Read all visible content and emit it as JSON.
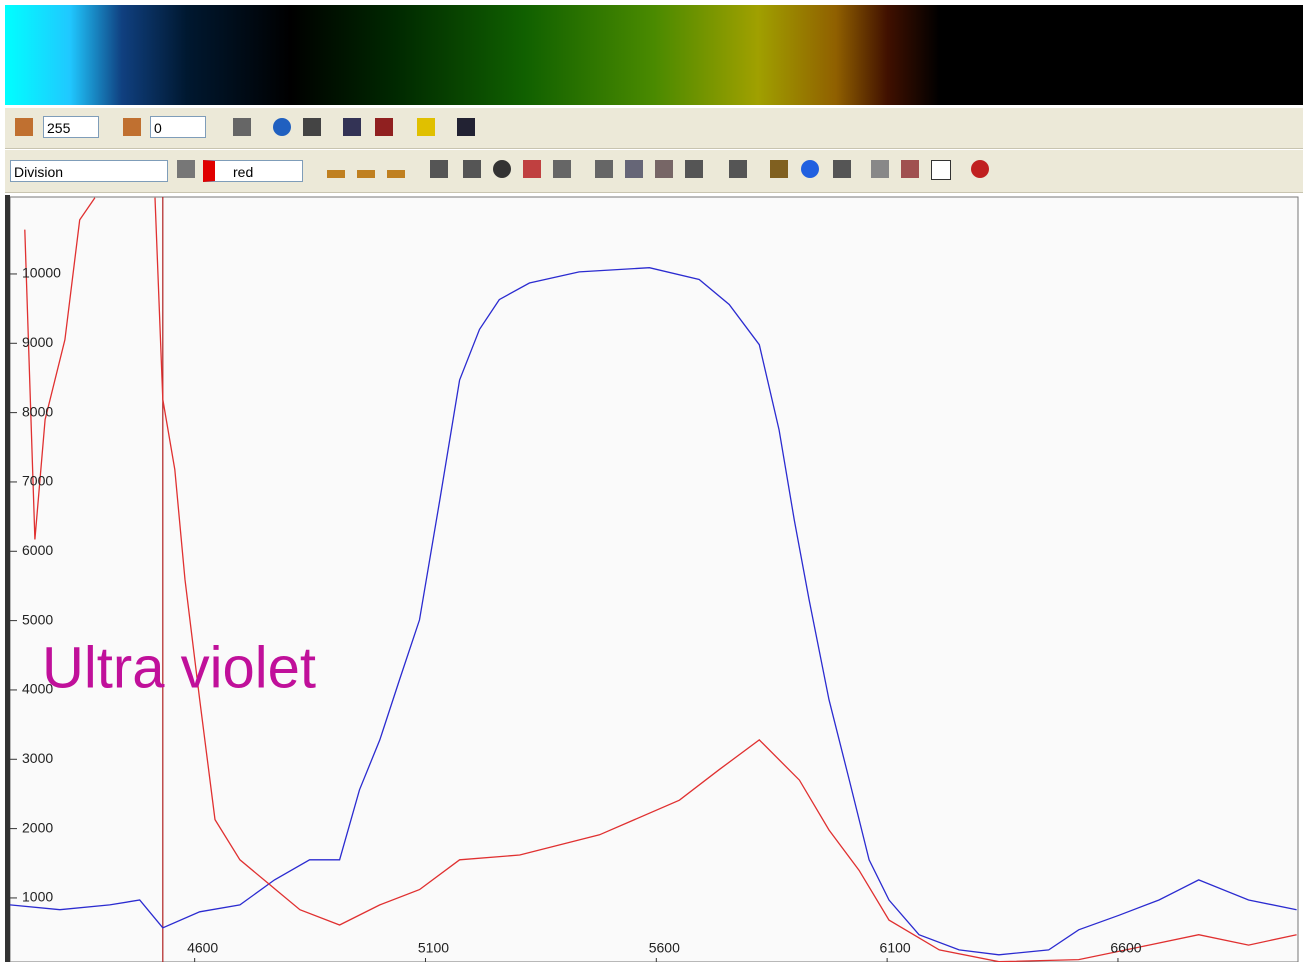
{
  "toolbar": {
    "threshold": "255",
    "offset": "0",
    "mode": "Division",
    "channel": "red"
  },
  "chart_data": {
    "type": "line",
    "annotation": "Ultra violet",
    "xlim": [
      4200,
      6990
    ],
    "ylim": [
      76,
      11110
    ],
    "xticks": [
      4600,
      5100,
      5600,
      6100,
      6600
    ],
    "yticks": [
      1000,
      2000,
      3000,
      4000,
      5000,
      6000,
      7000,
      8000,
      9000,
      10000
    ],
    "cursor": {
      "x": 4531,
      "color": "#b02020"
    },
    "series": [
      {
        "color": "#2b2bd0",
        "x": [
          4200,
          4308,
          4416,
          4481,
          4531,
          4611,
          4698,
          4773,
          4849,
          4914,
          4957,
          5001,
          5044,
          5087,
          5131,
          5174,
          5217,
          5260,
          5325,
          5433,
          5585,
          5693,
          5758,
          5823,
          5866,
          5899,
          5931,
          5974,
          6018,
          6061,
          6104,
          6169,
          6256,
          6342,
          6450,
          6515,
          6602,
          6689,
          6775,
          6883,
          6987
        ],
        "values": [
          900,
          830,
          900,
          970,
          570,
          800,
          900,
          1260,
          1550,
          1550,
          2560,
          3280,
          4150,
          5010,
          6740,
          8470,
          9200,
          9630,
          9870,
          10030,
          10090,
          9920,
          9560,
          8980,
          7750,
          6450,
          5300,
          3860,
          2700,
          1550,
          970,
          470,
          250,
          180,
          250,
          540,
          750,
          970,
          1260,
          970,
          830
        ]
      },
      {
        "color": "#e03030",
        "x": [
          4232,
          4254,
          4276,
          4319,
          4351,
          4384,
          4450,
          4514,
          4531,
          4557,
          4579,
          4611,
          4644,
          4698,
          4763,
          4828,
          4914,
          5001,
          5087,
          5174,
          5304,
          5477,
          5650,
          5736,
          5823,
          5910,
          5974,
          6039,
          6104,
          6213,
          6342,
          6515,
          6667,
          6775,
          6883,
          6987
        ],
        "values": [
          10640,
          6170,
          7900,
          9050,
          10780,
          11100,
          null,
          11100,
          8190,
          7180,
          5590,
          3860,
          2130,
          1550,
          1190,
          830,
          610,
          900,
          1120,
          1550,
          1620,
          1910,
          2410,
          2850,
          3280,
          2700,
          1980,
          1400,
          680,
          250,
          80,
          110,
          320,
          470,
          320,
          470
        ]
      }
    ]
  }
}
